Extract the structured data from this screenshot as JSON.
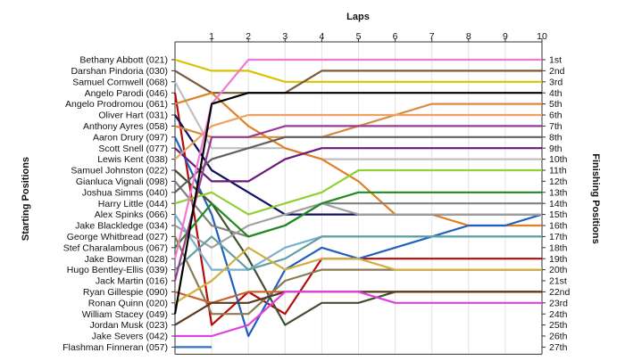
{
  "chart_data": {
    "type": "line",
    "title": "",
    "x_axis_title": "Laps",
    "left_axis_title": "Starting Positions",
    "right_axis_title": "Finishing Positions",
    "laps": [
      1,
      2,
      3,
      4,
      5,
      6,
      7,
      8,
      9,
      10
    ],
    "position_labels": [
      "1st",
      "2nd",
      "3rd",
      "4th",
      "5th",
      "6th",
      "7th",
      "8th",
      "9th",
      "10th",
      "11th",
      "12th",
      "13th",
      "14th",
      "15th",
      "16th",
      "17th",
      "18th",
      "19th",
      "20th",
      "21st",
      "22nd",
      "23rd",
      "24th",
      "25th",
      "26th",
      "27th"
    ],
    "grid": true,
    "series": [
      {
        "name": "Bethany Abbott (021)",
        "color": "#d6c400",
        "positions": [
          1,
          2,
          2,
          3,
          3,
          3,
          3,
          3,
          3,
          3,
          3
        ]
      },
      {
        "name": "Darshan Pindoria (030)",
        "color": "#7a5a3a",
        "positions": [
          2,
          4,
          4,
          4,
          2,
          2,
          2,
          2,
          2,
          2,
          2
        ]
      },
      {
        "name": "Samuel Cornwell (068)",
        "color": "#c0c0c0",
        "positions": [
          3,
          9,
          9,
          9,
          10,
          10,
          10,
          10,
          10,
          10,
          10
        ]
      },
      {
        "name": "Angelo Parodi (046)",
        "color": "#b50a0a",
        "positions": [
          4,
          25,
          22,
          24,
          19,
          19,
          19,
          19,
          19,
          19,
          19
        ]
      },
      {
        "name": "Angelo Prodromou (061)",
        "color": "#e08020",
        "positions": [
          5,
          4,
          7,
          9,
          10,
          12,
          15,
          15,
          16,
          16,
          16
        ]
      },
      {
        "name": "Oliver Hart (031)",
        "color": "#101060",
        "positions": [
          6,
          11,
          13,
          15,
          15,
          15,
          15,
          15,
          15,
          15,
          15
        ]
      },
      {
        "name": "Anthony Ayres (058)",
        "color": "#d88a40",
        "positions": [
          7,
          8,
          8,
          8,
          8,
          7,
          6,
          5,
          5,
          5,
          5
        ]
      },
      {
        "name": "Aaron Drury (097)",
        "color": "#2060c0",
        "positions": [
          8,
          15,
          26,
          20,
          18,
          19,
          18,
          17,
          16,
          16,
          15
        ]
      },
      {
        "name": "Scott Snell (077)",
        "color": "#6a1a7a",
        "positions": [
          9,
          12,
          12,
          10,
          9,
          9,
          9,
          9,
          9,
          9,
          9
        ]
      },
      {
        "name": "Lewis Kent (038)",
        "color": "#f0a060",
        "positions": [
          10,
          7,
          6,
          6,
          6,
          6,
          6,
          6,
          6,
          6,
          6
        ]
      },
      {
        "name": "Samuel Johnston (022)",
        "color": "#405030",
        "positions": [
          11,
          14,
          19,
          25,
          23,
          23,
          22,
          22,
          22,
          22,
          22
        ]
      },
      {
        "name": "Gianluca Vignali (098)",
        "color": "#808080",
        "positions": [
          12,
          16,
          17,
          16,
          14,
          14,
          14,
          14,
          14,
          14,
          14
        ]
      },
      {
        "name": "Joshua Simms (040)",
        "color": "#606060",
        "positions": [
          13,
          10,
          9,
          8,
          8,
          8,
          8,
          8,
          8,
          8,
          8
        ]
      },
      {
        "name": "Harry Little (044)",
        "color": "#90d030",
        "positions": [
          14,
          13,
          15,
          14,
          13,
          11,
          11,
          11,
          11,
          11,
          11
        ]
      },
      {
        "name": "Alex Spinks (066)",
        "color": "#7ab0d0",
        "positions": [
          15,
          20,
          20,
          18,
          17,
          17,
          17,
          17,
          17,
          17,
          17
        ]
      },
      {
        "name": "Jake Blackledge (034)",
        "color": "#a0a0a0",
        "positions": [
          16,
          18,
          16,
          15,
          14,
          15,
          15,
          15,
          15,
          15,
          15
        ]
      },
      {
        "name": "George Whitbread (027)",
        "color": "#8c7a50",
        "positions": [
          17,
          24,
          24,
          21,
          20,
          20,
          20,
          20,
          20,
          20,
          20
        ]
      },
      {
        "name": "Stef Charalambous (067)",
        "color": "#208a20",
        "positions": [
          18,
          14,
          17,
          16,
          14,
          13,
          13,
          13,
          13,
          13,
          13
        ]
      },
      {
        "name": "Jake Bowman (028)",
        "color": "#f07ad0",
        "positions": [
          19,
          5,
          1,
          1,
          1,
          1,
          1,
          1,
          1,
          1,
          1
        ]
      },
      {
        "name": "Hugo Bentley-Ellis (039)",
        "color": "#60a0a0",
        "positions": [
          20,
          17,
          20,
          19,
          17,
          17,
          17,
          17,
          17,
          17,
          17
        ]
      },
      {
        "name": "Jack Martin (016)",
        "color": "#9a3b90",
        "positions": [
          21,
          8,
          8,
          7,
          7,
          7,
          7,
          7,
          7,
          7,
          7
        ]
      },
      {
        "name": "Ryan Gillespie (090)",
        "color": "#c86430",
        "positions": [
          22,
          23,
          22,
          22,
          22,
          22,
          22,
          22,
          22,
          22,
          22
        ]
      },
      {
        "name": "Ronan Quinn (020)",
        "color": "#d0b040",
        "positions": [
          23,
          21,
          18,
          20,
          19,
          19,
          20,
          20,
          20,
          20,
          20
        ]
      },
      {
        "name": "William Stacey (049)",
        "color": "#000000",
        "positions": [
          24,
          5,
          4,
          4,
          4,
          4,
          4,
          4,
          4,
          4,
          4
        ]
      },
      {
        "name": "Jordan Musk (023)",
        "color": "#5a3a20",
        "positions": [
          25,
          23,
          23,
          22,
          22,
          22,
          22,
          22,
          22,
          22,
          22
        ]
      },
      {
        "name": "Jake Severs (042)",
        "color": "#e040e0",
        "positions": [
          26,
          26,
          25,
          22,
          22,
          22,
          23,
          23,
          23,
          23,
          23
        ]
      },
      {
        "name": "Flashman Finneran (057)",
        "color": "#3070c0",
        "positions": [
          27,
          27
        ]
      }
    ]
  }
}
